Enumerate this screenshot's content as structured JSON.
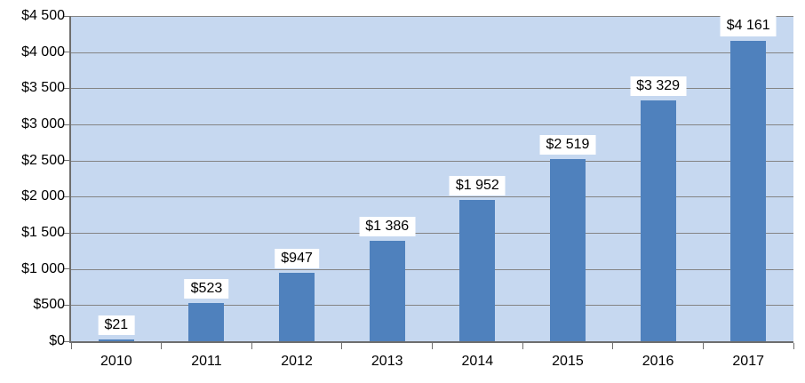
{
  "chart_data": {
    "type": "bar",
    "title": "",
    "xlabel": "",
    "ylabel": "",
    "categories": [
      "2010",
      "2011",
      "2012",
      "2013",
      "2014",
      "2015",
      "2016",
      "2017"
    ],
    "values": [
      21,
      523,
      947,
      1386,
      1952,
      2519,
      3329,
      4161
    ],
    "value_labels": [
      "$21",
      "$523",
      "$947",
      "$1 386",
      "$1 952",
      "$2 519",
      "$3 329",
      "$4 161"
    ],
    "y_tick_values": [
      0,
      500,
      1000,
      1500,
      2000,
      2500,
      3000,
      3500,
      4000,
      4500
    ],
    "y_tick_labels": [
      "$0",
      "$500",
      "$1 000",
      "$1 500",
      "$2 000",
      "$2 500",
      "$3 000",
      "$3 500",
      "$4 000",
      "$4 500"
    ],
    "ylim": [
      0,
      4500
    ],
    "grid": "horizontal gridlines on",
    "legend": "none",
    "colors": {
      "bar_fill": "#4F81BD",
      "plot_background": "#C6D8F0",
      "gridline": "#848484",
      "axis": "#6E6E6E",
      "data_label_background": "#FFFFFF",
      "text": "#000000",
      "page_background": "#FFFFFF"
    }
  }
}
